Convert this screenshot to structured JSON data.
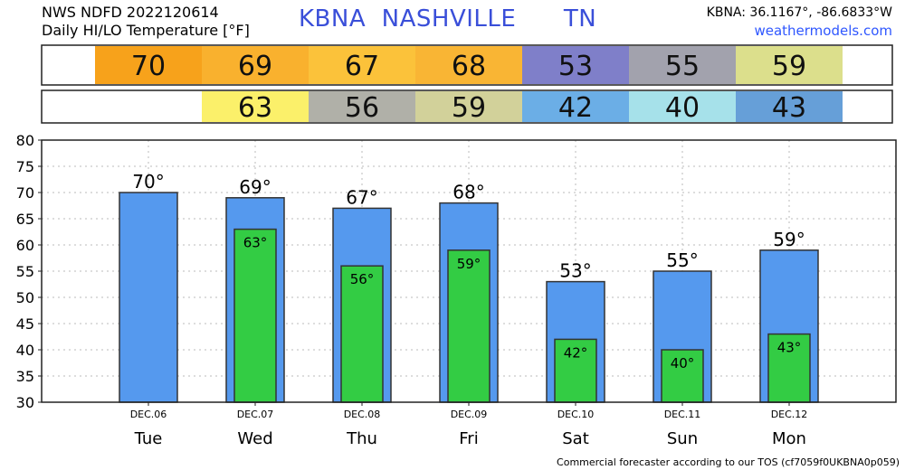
{
  "header": {
    "title_line1": "NWS NDFD 2022120614",
    "title_line2": "Daily HI/LO Temperature [°F]",
    "station_code": "KBNA",
    "station_city": "NASHVILLE",
    "station_state": "TN",
    "coords": "KBNA: 36.1167°, -86.6833°W",
    "website": "weathermodels.com"
  },
  "footer": "Commercial forecaster according to our TOS (cf7059f0UKBNA0p059)",
  "degree_symbol": "°",
  "colors": {
    "hi_bar": "#5599ee",
    "lo_bar": "#33cc44",
    "hi_row_cells": [
      "#f7a21b",
      "#f9b12e",
      "#fbc23a",
      "#f9b534",
      "#7f7fc9",
      "#a2a2ad",
      "#dcdf8c"
    ],
    "lo_row_cells": [
      null,
      "#fbf06a",
      "#b0b0a8",
      "#d2d19a",
      "#6baee6",
      "#a6e1ea",
      "#669fd8"
    ]
  },
  "chart_data": {
    "type": "bar",
    "categories": [
      "Tue",
      "Wed",
      "Thu",
      "Fri",
      "Sat",
      "Sun",
      "Mon"
    ],
    "dates": [
      "DEC.06",
      "DEC.07",
      "DEC.08",
      "DEC.09",
      "DEC.10",
      "DEC.11",
      "DEC.12"
    ],
    "series": [
      {
        "values": [
          70,
          69,
          67,
          68,
          53,
          55,
          59
        ]
      },
      {
        "values": [
          null,
          63,
          56,
          59,
          42,
          40,
          43
        ]
      }
    ],
    "ylim": [
      30,
      80
    ],
    "yticks": [
      30,
      35,
      40,
      45,
      50,
      55,
      60,
      65,
      70,
      75,
      80
    ],
    "grid": true
  }
}
